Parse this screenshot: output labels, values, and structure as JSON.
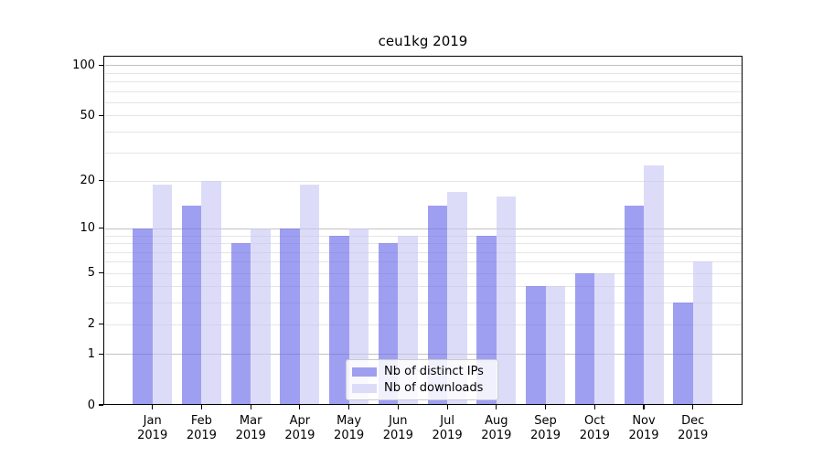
{
  "title": "ceu1kg 2019",
  "legend": {
    "items": [
      {
        "label": "Nb of distinct IPs"
      },
      {
        "label": "Nb of downloads"
      }
    ]
  },
  "chart_data": {
    "type": "bar",
    "title": "ceu1kg 2019",
    "categories": [
      "Jan 2019",
      "Feb 2019",
      "Mar 2019",
      "Apr 2019",
      "May 2019",
      "Jun 2019",
      "Jul 2019",
      "Aug 2019",
      "Sep 2019",
      "Oct 2019",
      "Nov 2019",
      "Dec 2019"
    ],
    "series": [
      {
        "name": "Nb of distinct IPs",
        "values": [
          10,
          14,
          8,
          10,
          9,
          8,
          14,
          9,
          4,
          5,
          14,
          3
        ],
        "fill": "rgba(110,110,235,0.66)",
        "legend_color": "#9f9ff0"
      },
      {
        "name": "Nb of downloads",
        "values": [
          19,
          20,
          10,
          19,
          10,
          9,
          17,
          16,
          4,
          5,
          25,
          6
        ],
        "fill": "rgba(198,198,246,0.62)",
        "legend_color": "#dcdcf9"
      }
    ],
    "yscale": "log10(1+y)",
    "ylim": [
      0,
      113
    ],
    "yticks": [
      0,
      1,
      2,
      5,
      10,
      20,
      50,
      100
    ],
    "major_gridlines": [
      1,
      10,
      100
    ],
    "minor_gridlines": [
      2,
      3,
      4,
      5,
      6,
      7,
      8,
      9,
      20,
      30,
      40,
      50,
      60,
      70,
      80,
      90
    ],
    "grid_color_major": "#c2c2c2",
    "grid_color_minor": "#e5e5e5",
    "legend_position": "lower center",
    "xlabel": "",
    "ylabel": ""
  }
}
